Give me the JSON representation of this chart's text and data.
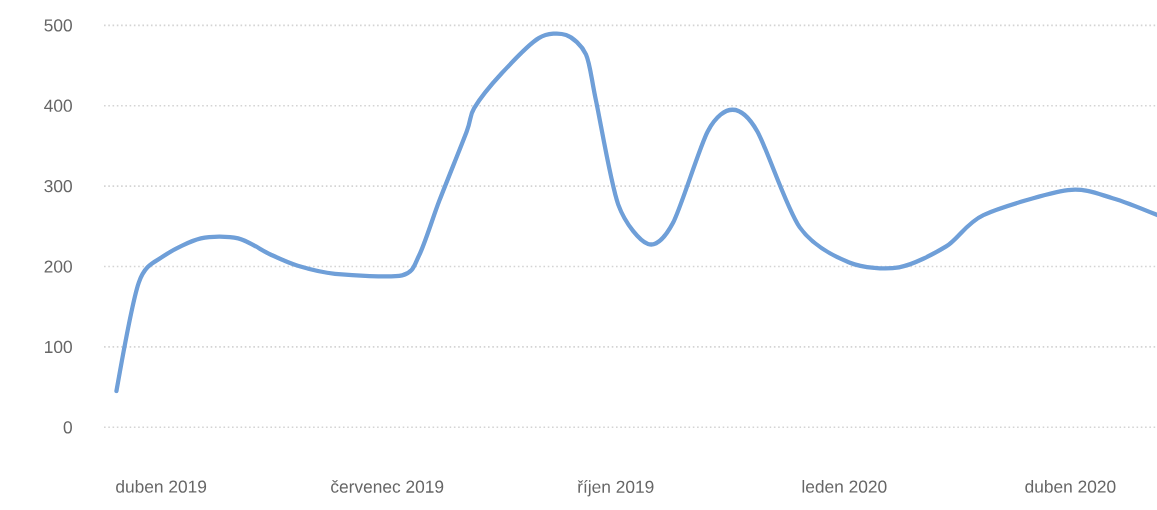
{
  "chart_data": {
    "type": "line",
    "color": "#6f9fd8",
    "x": [
      "2019-03-14",
      "2019-03-23",
      "2019-04-02",
      "2019-04-17",
      "2019-05-02",
      "2019-05-15",
      "2019-05-26",
      "2019-06-10",
      "2019-07-07",
      "2019-07-14",
      "2019-07-22",
      "2019-08-02",
      "2019-08-05",
      "2019-08-16",
      "2019-08-31",
      "2019-09-11",
      "2019-09-19",
      "2019-09-23",
      "2019-10-02",
      "2019-10-14",
      "2019-10-24",
      "2019-11-07",
      "2019-11-17",
      "2019-11-27",
      "2019-12-14",
      "2020-01-03",
      "2020-01-23",
      "2020-02-11",
      "2020-02-26",
      "2020-03-31",
      "2020-04-18",
      "2020-05-06"
    ],
    "values": [
      45,
      180,
      213,
      235,
      235,
      215,
      201,
      191,
      189,
      215,
      282,
      368,
      397,
      440,
      484,
      488,
      464,
      407,
      277,
      228,
      254,
      368,
      395,
      368,
      249,
      205,
      199,
      225,
      264,
      295,
      285,
      264
    ],
    "xlim": [
      "2019-03-09",
      "2020-05-06"
    ],
    "xticks": [
      {
        "value": "2019-04-01",
        "label": "duben 2019"
      },
      {
        "value": "2019-07-01",
        "label": "červenec 2019"
      },
      {
        "value": "2019-10-01",
        "label": "říjen 2019"
      },
      {
        "value": "2020-01-01",
        "label": "leden 2020"
      },
      {
        "value": "2020-04-01",
        "label": "duben 2020"
      }
    ],
    "ylim": [
      0,
      500
    ],
    "yticks": [
      0,
      100,
      200,
      300,
      400,
      500
    ],
    "grid": "y"
  }
}
